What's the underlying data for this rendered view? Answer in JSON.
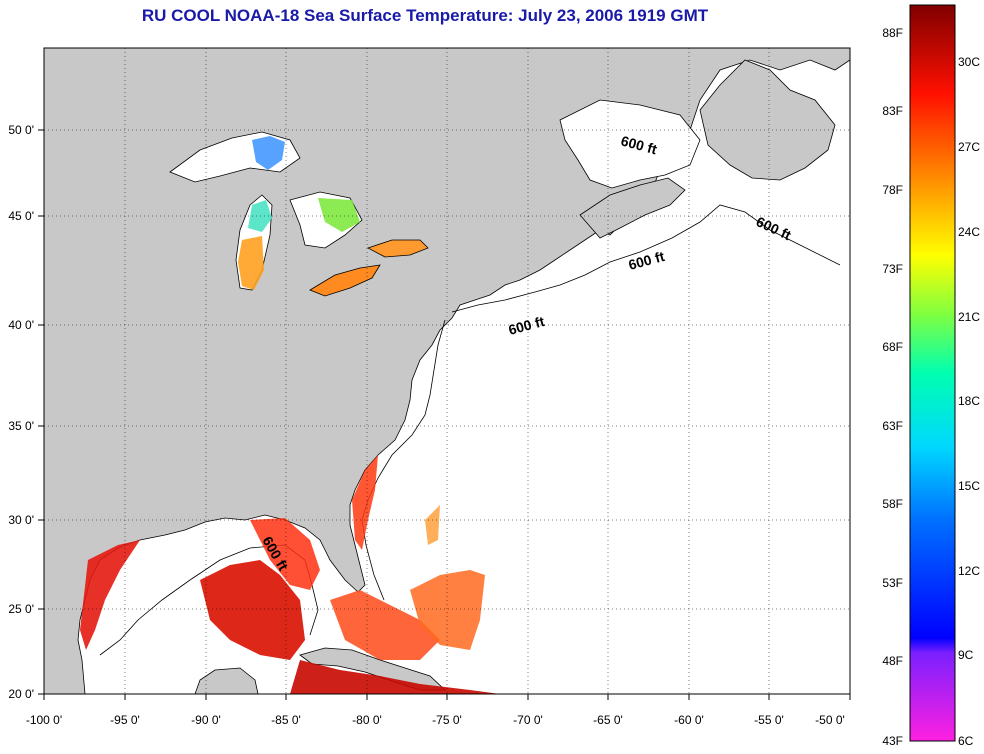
{
  "title": "RU COOL  NOAA-18  Sea Surface Temperature:  July 23, 2006 1919 GMT",
  "map": {
    "lon_ticks": [
      "-100 0'",
      "-95 0'",
      "-90 0'",
      "-85 0'",
      "-80 0'",
      "-75 0'",
      "-70 0'",
      "-65 0'",
      "-60 0'",
      "-55 0'",
      "-50 0'"
    ],
    "lat_ticks": [
      "20 0'",
      "25 0'",
      "30 0'",
      "35 0'",
      "40 0'",
      "45 0'",
      "50 0'"
    ],
    "lon_range": [
      -100,
      -50
    ],
    "lat_range": [
      20,
      52.5
    ],
    "land_color": "#c8c8c8",
    "ocean_color": "#ffffff",
    "grid": "dotted",
    "depth_contour_label": "600 ft",
    "depth_labels": [
      "600 ft",
      "600 ft",
      "600 ft",
      "600 ft",
      "600 ft"
    ]
  },
  "colorbar": {
    "fahrenheit_labels": [
      "88F",
      "83F",
      "78F",
      "73F",
      "68F",
      "63F",
      "58F",
      "53F",
      "48F",
      "43F"
    ],
    "celsius_labels": [
      "30C",
      "27C",
      "24C",
      "21C",
      "18C",
      "15C",
      "12C",
      "9C",
      "6C"
    ],
    "gradient_colors": [
      "#800000",
      "#ff0000",
      "#ff8000",
      "#ffff00",
      "#00ff80",
      "#00ffff",
      "#0080ff",
      "#0000ff",
      "#8000ff",
      "#ff00ff"
    ]
  }
}
